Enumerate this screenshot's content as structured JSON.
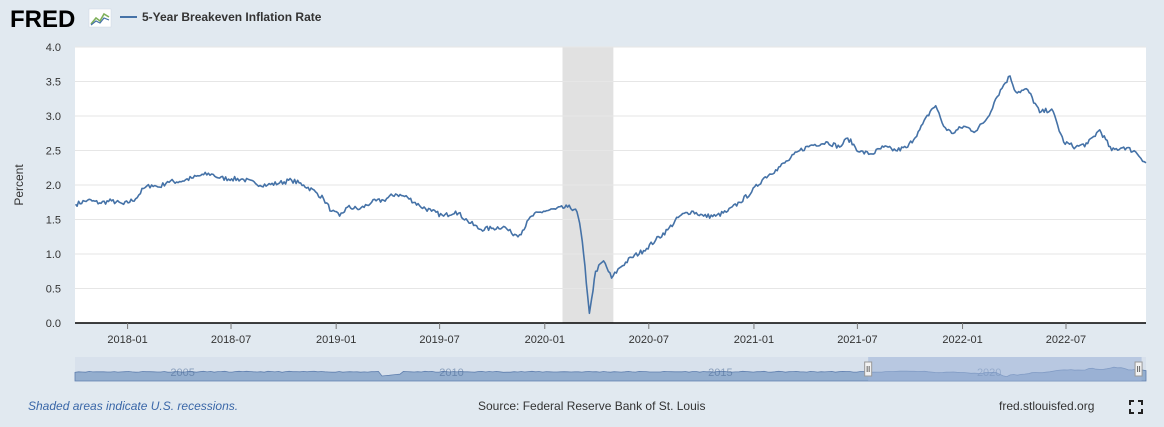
{
  "header": {
    "logo_text": "FRED",
    "logo_icon": "sparkline-icon",
    "legend_label": "5-Year Breakeven Inflation Rate"
  },
  "footer": {
    "note": "Shaded areas indicate U.S. recessions.",
    "source": "Source: Federal Reserve Bank of St. Louis",
    "url": "fred.stlouisfed.org",
    "fullscreen_icon": "fullscreen-icon"
  },
  "navigator": {
    "year_labels": [
      {
        "year": 2005,
        "label": "2005"
      },
      {
        "year": 2010,
        "label": "2010"
      },
      {
        "year": 2015,
        "label": "2015"
      },
      {
        "year": 2020,
        "label": "2020"
      }
    ],
    "range": {
      "start": "2003-01",
      "end": "2022-12"
    },
    "selected": {
      "start": "2017-10",
      "end": "2022-11"
    }
  },
  "colors": {
    "line": "#4572a7",
    "recession": "#e1e1e1",
    "background": "#e1e9f0",
    "plot_bg": "#ffffff",
    "grid": "#e6e6e6",
    "navigator_fill": "#7e9cc4",
    "navigator_selected": "#9fb5d8"
  },
  "chart_data": {
    "type": "line",
    "title": "",
    "ylabel": "Percent",
    "xlabel": "",
    "x_range": [
      "2017-10-01",
      "2022-11-18"
    ],
    "ylim": [
      0,
      4
    ],
    "yticks": [
      {
        "value": 0,
        "label": "0.0"
      },
      {
        "value": 0.5,
        "label": "0.5"
      },
      {
        "value": 1,
        "label": "1.0"
      },
      {
        "value": 1.5,
        "label": "1.5"
      },
      {
        "value": 2,
        "label": "2.0"
      },
      {
        "value": 2.5,
        "label": "2.5"
      },
      {
        "value": 3,
        "label": "3.0"
      },
      {
        "value": 3.5,
        "label": "3.5"
      },
      {
        "value": 4,
        "label": "4.0"
      }
    ],
    "xticks": [
      {
        "date": "2018-01-01",
        "label": "2018-01"
      },
      {
        "date": "2018-07-01",
        "label": "2018-07"
      },
      {
        "date": "2019-01-01",
        "label": "2019-01"
      },
      {
        "date": "2019-07-01",
        "label": "2019-07"
      },
      {
        "date": "2020-01-01",
        "label": "2020-01"
      },
      {
        "date": "2020-07-01",
        "label": "2020-07"
      },
      {
        "date": "2021-01-01",
        "label": "2021-01"
      },
      {
        "date": "2021-07-01",
        "label": "2021-07"
      },
      {
        "date": "2022-01-01",
        "label": "2022-01"
      },
      {
        "date": "2022-07-01",
        "label": "2022-07"
      }
    ],
    "grid": true,
    "legend": "top-left",
    "recessions": [
      {
        "start": "2020-02-01",
        "end": "2020-04-30"
      }
    ],
    "series": [
      {
        "name": "5-Year Breakeven Inflation Rate",
        "points": [
          [
            "2017-10-02",
            1.72
          ],
          [
            "2017-10-23",
            1.78
          ],
          [
            "2017-11-13",
            1.74
          ],
          [
            "2017-12-04",
            1.77
          ],
          [
            "2017-12-25",
            1.72
          ],
          [
            "2018-01-15",
            1.8
          ],
          [
            "2018-01-29",
            1.95
          ],
          [
            "2018-02-12",
            2.0
          ],
          [
            "2018-02-26",
            1.97
          ],
          [
            "2018-03-12",
            2.05
          ],
          [
            "2018-04-02",
            2.05
          ],
          [
            "2018-04-23",
            2.1
          ],
          [
            "2018-05-14",
            2.15
          ],
          [
            "2018-05-28",
            2.16
          ],
          [
            "2018-06-11",
            2.1
          ],
          [
            "2018-07-02",
            2.09
          ],
          [
            "2018-07-23",
            2.08
          ],
          [
            "2018-08-13",
            2.02
          ],
          [
            "2018-09-03",
            2.0
          ],
          [
            "2018-09-24",
            2.03
          ],
          [
            "2018-10-15",
            2.07
          ],
          [
            "2018-11-05",
            2.0
          ],
          [
            "2018-11-26",
            1.9
          ],
          [
            "2018-12-10",
            1.8
          ],
          [
            "2018-12-24",
            1.62
          ],
          [
            "2019-01-07",
            1.55
          ],
          [
            "2019-01-21",
            1.68
          ],
          [
            "2019-02-11",
            1.65
          ],
          [
            "2019-03-04",
            1.75
          ],
          [
            "2019-03-25",
            1.78
          ],
          [
            "2019-04-15",
            1.87
          ],
          [
            "2019-05-06",
            1.82
          ],
          [
            "2019-05-27",
            1.7
          ],
          [
            "2019-06-17",
            1.62
          ],
          [
            "2019-07-08",
            1.55
          ],
          [
            "2019-07-29",
            1.62
          ],
          [
            "2019-08-19",
            1.48
          ],
          [
            "2019-09-09",
            1.36
          ],
          [
            "2019-09-30",
            1.37
          ],
          [
            "2019-10-21",
            1.4
          ],
          [
            "2019-11-04",
            1.3
          ],
          [
            "2019-11-18",
            1.28
          ],
          [
            "2019-12-09",
            1.55
          ],
          [
            "2019-12-30",
            1.62
          ],
          [
            "2020-01-20",
            1.65
          ],
          [
            "2020-02-10",
            1.68
          ],
          [
            "2020-02-24",
            1.65
          ],
          [
            "2020-03-02",
            1.45
          ],
          [
            "2020-03-09",
            1.0
          ],
          [
            "2020-03-16",
            0.4
          ],
          [
            "2020-03-19",
            0.14
          ],
          [
            "2020-03-23",
            0.35
          ],
          [
            "2020-03-30",
            0.75
          ],
          [
            "2020-04-13",
            0.9
          ],
          [
            "2020-04-27",
            0.65
          ],
          [
            "2020-05-11",
            0.8
          ],
          [
            "2020-06-01",
            0.95
          ],
          [
            "2020-06-22",
            1.05
          ],
          [
            "2020-07-13",
            1.2
          ],
          [
            "2020-08-03",
            1.35
          ],
          [
            "2020-08-24",
            1.55
          ],
          [
            "2020-09-14",
            1.62
          ],
          [
            "2020-10-05",
            1.55
          ],
          [
            "2020-10-26",
            1.55
          ],
          [
            "2020-11-16",
            1.62
          ],
          [
            "2020-12-07",
            1.75
          ],
          [
            "2020-12-28",
            1.9
          ],
          [
            "2021-01-18",
            2.1
          ],
          [
            "2021-02-08",
            2.22
          ],
          [
            "2021-03-01",
            2.35
          ],
          [
            "2021-03-22",
            2.5
          ],
          [
            "2021-04-12",
            2.58
          ],
          [
            "2021-05-10",
            2.62
          ],
          [
            "2021-05-31",
            2.55
          ],
          [
            "2021-06-14",
            2.68
          ],
          [
            "2021-07-05",
            2.48
          ],
          [
            "2021-07-26",
            2.45
          ],
          [
            "2021-08-16",
            2.55
          ],
          [
            "2021-09-06",
            2.5
          ],
          [
            "2021-09-27",
            2.55
          ],
          [
            "2021-10-18",
            2.8
          ],
          [
            "2021-11-08",
            3.1
          ],
          [
            "2021-11-15",
            3.15
          ],
          [
            "2021-11-29",
            2.85
          ],
          [
            "2021-12-13",
            2.75
          ],
          [
            "2022-01-03",
            2.85
          ],
          [
            "2022-01-24",
            2.78
          ],
          [
            "2022-02-14",
            2.98
          ],
          [
            "2022-02-28",
            3.25
          ],
          [
            "2022-03-14",
            3.45
          ],
          [
            "2022-03-25",
            3.58
          ],
          [
            "2022-04-04",
            3.35
          ],
          [
            "2022-04-25",
            3.38
          ],
          [
            "2022-05-16",
            3.05
          ],
          [
            "2022-06-06",
            3.1
          ],
          [
            "2022-06-27",
            2.62
          ],
          [
            "2022-07-18",
            2.55
          ],
          [
            "2022-08-08",
            2.6
          ],
          [
            "2022-08-29",
            2.8
          ],
          [
            "2022-09-19",
            2.5
          ],
          [
            "2022-10-10",
            2.55
          ],
          [
            "2022-10-31",
            2.48
          ],
          [
            "2022-11-18",
            2.32
          ]
        ]
      }
    ]
  }
}
